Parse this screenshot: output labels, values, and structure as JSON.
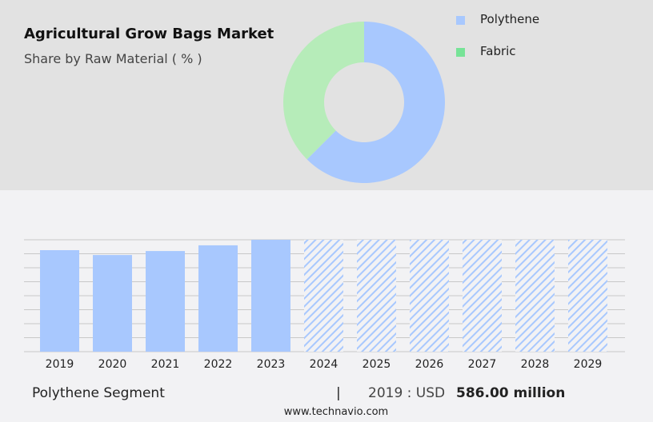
{
  "header": {
    "title": "Agricultural Grow Bags Market",
    "subtitle": "Share by Raw Material ( % )"
  },
  "chart_data": [
    {
      "type": "pie",
      "donut": true,
      "labels": [
        "Polythene",
        "Fabric"
      ],
      "values": [
        62.5,
        37.5
      ],
      "colors": [
        "#a8c8fe",
        "#b6ecb9"
      ],
      "legend_colors": [
        "#a8c8fe",
        "#77e397"
      ],
      "legend": "top-right"
    },
    {
      "type": "bar",
      "categories": [
        "2019",
        "2020",
        "2021",
        "2022",
        "2023",
        "2024",
        "2025",
        "2026",
        "2027",
        "2028",
        "2029"
      ],
      "values": [
        586,
        558,
        581,
        614,
        646,
        null,
        null,
        null,
        null,
        null,
        null
      ],
      "forecast": [
        "2024",
        "2025",
        "2026",
        "2027",
        "2028",
        "2029"
      ],
      "forecast_style": "hatched",
      "color": "#a8c8fe",
      "ylim": [
        0,
        646
      ],
      "grid": true
    }
  ],
  "footer": {
    "segment": "Polythene Segment",
    "sep": "|",
    "year_label": "2019 : USD",
    "value": "586.00 million",
    "url": "www.technavio.com"
  }
}
